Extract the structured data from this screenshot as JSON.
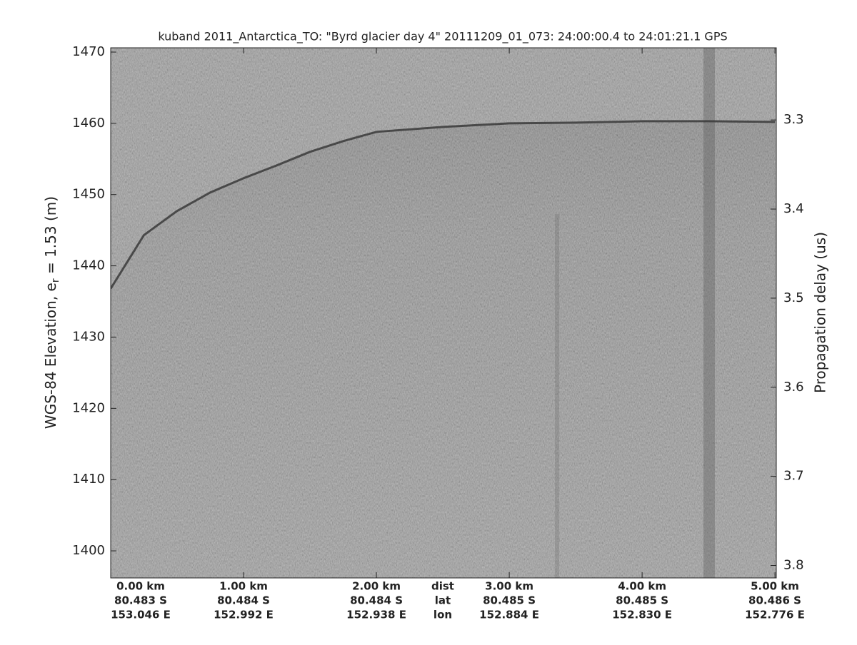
{
  "chart_data": {
    "type": "echogram",
    "title": "kuband 2011_Antarctica_TO: \"Byrd glacier day 4\"  20111209_01_073: 24:00:00.4 to 24:01:21.1 GPS",
    "ylabel": "WGS-84 Elevation, e",
    "ylabel_subscript": "r",
    "ylabel_suffix": " = 1.53 (m)",
    "y2label": "Propagation delay (us)",
    "xlim": [
      0,
      5.01
    ],
    "ylim": [
      1396.2,
      1470.6
    ],
    "y2lim": [
      3.814,
      3.219
    ],
    "yticks": [
      1400,
      1410,
      1420,
      1430,
      1440,
      1450,
      1460,
      1470
    ],
    "y2ticks": [
      3.3,
      3.4,
      3.5,
      3.6,
      3.7,
      3.8
    ],
    "xticks": [
      {
        "value": 0,
        "label": "0.00 km"
      },
      {
        "value": 1,
        "label": "1.00 km"
      },
      {
        "value": 2,
        "label": "2.00 km"
      },
      {
        "value": 3,
        "label": "3.00 km"
      },
      {
        "value": 4,
        "label": "4.00 km"
      },
      {
        "value": 5,
        "label": "5.00 km"
      }
    ],
    "xtick_lat": [
      "80.483 S",
      "80.484 S",
      "80.484 S",
      "80.485 S",
      "80.485 S",
      "80.486 S"
    ],
    "xtick_lon": [
      "153.046 E",
      "152.992 E",
      "152.938 E",
      "152.884 E",
      "152.830 E",
      "152.776 E"
    ],
    "xtick_row_names": [
      "dist",
      "lat",
      "lon"
    ],
    "surface": {
      "color": "#3a3a3a",
      "x": [
        0,
        0.25,
        0.5,
        0.75,
        1.0,
        1.25,
        1.5,
        1.75,
        2.0,
        2.5,
        3.0,
        3.5,
        4.0,
        4.5,
        5.0
      ],
      "y": [
        1436.8,
        1444.3,
        1447.7,
        1450.3,
        1452.3,
        1454.1,
        1456.0,
        1457.5,
        1458.8,
        1459.5,
        1460.0,
        1460.1,
        1460.3,
        1460.3,
        1460.2
      ]
    }
  }
}
